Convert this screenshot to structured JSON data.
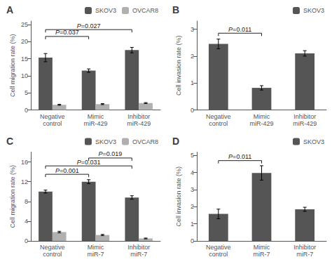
{
  "chart_data": [
    {
      "type": "bar",
      "title": "A",
      "categories": [
        "Negative\ncontrol",
        "Mimic\nmiR-429",
        "Inhibitor\nmiR-429"
      ],
      "series": [
        {
          "name": "SKOV3",
          "color": "#555555",
          "values": [
            15.3,
            11.5,
            17.5
          ],
          "errors": [
            1.2,
            0.5,
            0.8
          ]
        },
        {
          "name": "OVCAR8",
          "color": "#b0b0b0",
          "values": [
            1.5,
            1.7,
            2.0
          ],
          "errors": [
            0.15,
            0.15,
            0.15
          ]
        }
      ],
      "ylabel": "Cell migration rate (%)",
      "ylim": [
        0,
        26
      ],
      "yticks": [
        0,
        5,
        10,
        15,
        20,
        25
      ],
      "grid": false,
      "legend": "upper right",
      "annotations": [
        {
          "text": "P=0.037",
          "from": "Negative\ncontrol",
          "to": "Mimic\nmiR-429",
          "y": 21.5
        },
        {
          "text": "P=0.027",
          "from": "Negative\ncontrol",
          "to": "Inhibitor\nmiR-429",
          "y": 23.5
        }
      ]
    },
    {
      "type": "bar",
      "title": "B",
      "categories": [
        "Negative\ncontrol",
        "Mimic\nmiR-429",
        "Inhibitor\nmiR-429"
      ],
      "series": [
        {
          "name": "SKOV3",
          "color": "#555555",
          "values": [
            2.45,
            0.82,
            2.1
          ],
          "errors": [
            0.18,
            0.08,
            0.1
          ]
        }
      ],
      "ylabel": "Cell invasion rate (%)",
      "ylim": [
        0,
        3.3
      ],
      "yticks": [
        0,
        1,
        2,
        3
      ],
      "grid": false,
      "legend": "upper right",
      "annotations": [
        {
          "text": "P=0.011",
          "from": "Negative\ncontrol",
          "to": "Mimic\nmiR-429",
          "y": 2.85
        }
      ]
    },
    {
      "type": "bar",
      "title": "C",
      "categories": [
        "Negative\ncontrol",
        "Mimic\nmiR-7",
        "Inhibitor\nmiR-7"
      ],
      "series": [
        {
          "name": "SKOV3",
          "color": "#555555",
          "values": [
            10.0,
            12.0,
            8.8
          ],
          "errors": [
            0.3,
            0.4,
            0.35
          ]
        },
        {
          "name": "OVCAR8",
          "color": "#b0b0b0",
          "values": [
            1.8,
            1.2,
            0.5
          ],
          "errors": [
            0.15,
            0.12,
            0.08
          ]
        }
      ],
      "ylabel": "Cell migration rate (%)",
      "ylim": [
        0,
        18
      ],
      "yticks": [
        0,
        4,
        8,
        12,
        16
      ],
      "grid": false,
      "legend": "upper right",
      "annotations": [
        {
          "text": "P=0.001",
          "from": "Negative\ncontrol",
          "to": "Mimic\nmiR-7",
          "y": 13.5
        },
        {
          "text": "P=0.031",
          "from": "Negative\ncontrol",
          "to": "Inhibitor\nmiR-7",
          "y": 15.2
        },
        {
          "text": "P=0.019",
          "from": "Mimic\nmiR-7",
          "to": "Inhibitor\nmiR-7",
          "y": 16.8
        }
      ]
    },
    {
      "type": "bar",
      "title": "D",
      "categories": [
        "Negative\ncontrol",
        "Mimic\nmiR-7",
        "Inhibitor\nmiR-7"
      ],
      "series": [
        {
          "name": "SKOV3",
          "color": "#555555",
          "values": [
            1.58,
            3.98,
            1.85
          ],
          "errors": [
            0.28,
            0.42,
            0.12
          ]
        }
      ],
      "ylabel": "Cell invasion rate (%)",
      "ylim": [
        0,
        5.2
      ],
      "yticks": [
        0,
        1,
        2,
        3,
        4,
        5
      ],
      "grid": false,
      "legend": "upper right",
      "annotations": [
        {
          "text": "P=0.011",
          "from": "Negative\ncontrol",
          "to": "Mimic\nmiR-7",
          "y": 4.7
        }
      ]
    }
  ]
}
